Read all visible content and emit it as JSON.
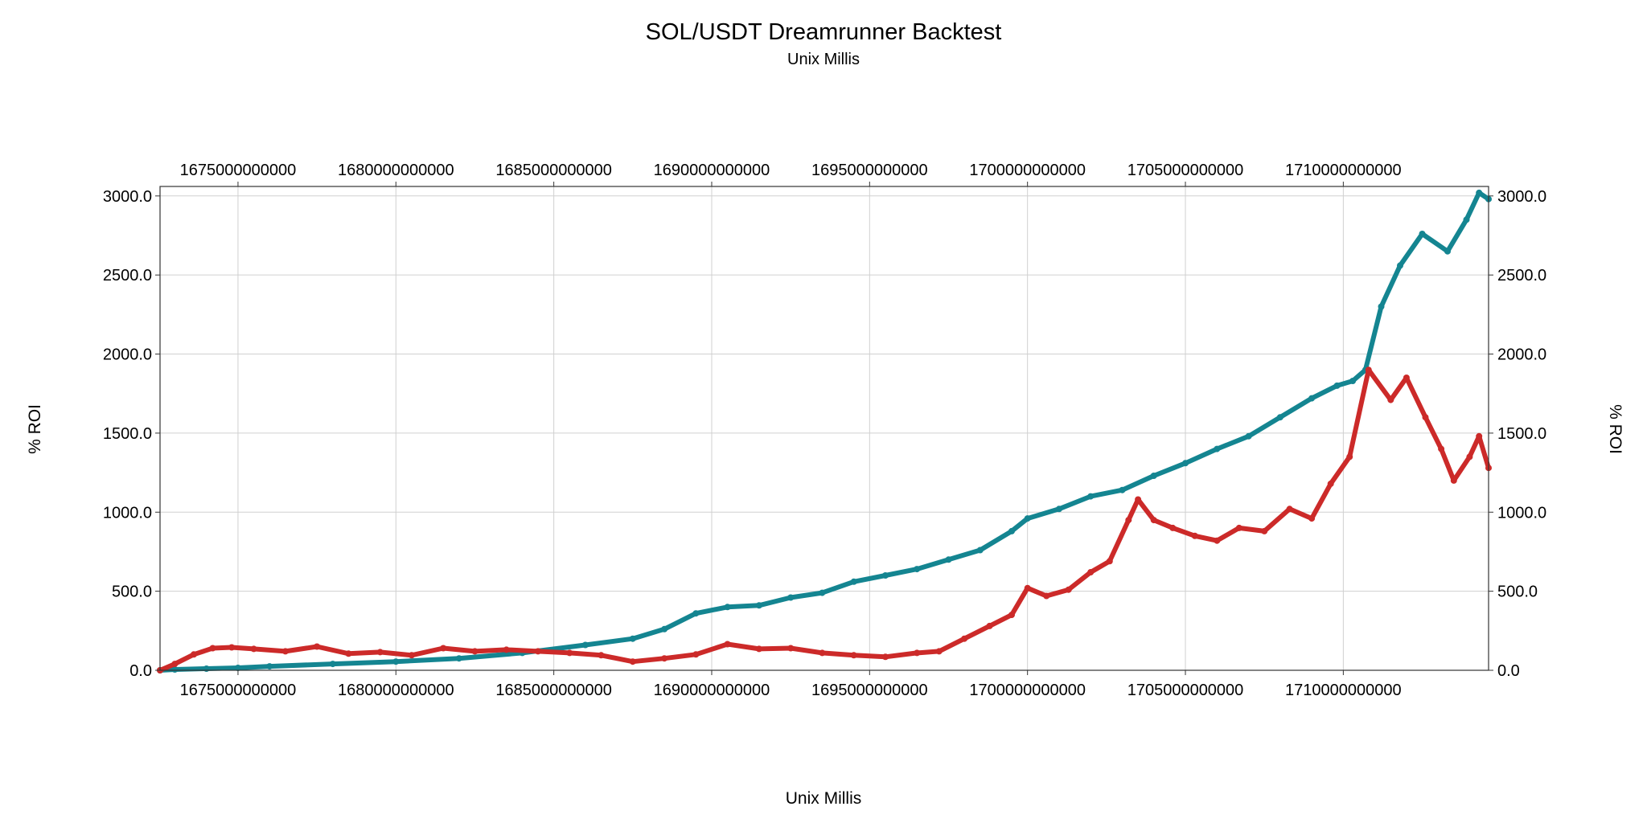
{
  "chart_data": {
    "type": "scatter",
    "title": "SOL/USDT Dreamrunner Backtest",
    "subtitle": "Unix Millis",
    "xlabel": "Unix Millis",
    "ylabel": "% ROI",
    "xlim": [
      1672531200000,
      1714600000000
    ],
    "ylim": [
      0,
      3060
    ],
    "x_ticks": [
      "1675000000000",
      "1680000000000",
      "1685000000000",
      "1690000000000",
      "1695000000000",
      "1700000000000",
      "1705000000000",
      "1710000000000"
    ],
    "x_tick_values": [
      1675000000000,
      1680000000000,
      1685000000000,
      1690000000000,
      1695000000000,
      1700000000000,
      1705000000000,
      1710000000000
    ],
    "y_ticks": [
      "0.0",
      "500.0",
      "1000.0",
      "1500.0",
      "2000.0",
      "2500.0",
      "3000.0"
    ],
    "y_tick_values": [
      0,
      500,
      1000,
      1500,
      2000,
      2500,
      3000
    ],
    "grid": true,
    "legend": "none",
    "series": [
      {
        "color": "#148591",
        "x": [
          1672531200000,
          1673000000000,
          1674000000000,
          1675000000000,
          1676000000000,
          1678000000000,
          1680000000000,
          1682000000000,
          1684000000000,
          1686000000000,
          1687500000000,
          1688500000000,
          1689500000000,
          1690500000000,
          1691500000000,
          1692500000000,
          1693500000000,
          1694500000000,
          1695500000000,
          1696500000000,
          1697500000000,
          1698500000000,
          1699500000000,
          1700000000000,
          1701000000000,
          1702000000000,
          1703000000000,
          1704000000000,
          1705000000000,
          1706000000000,
          1707000000000,
          1708000000000,
          1709000000000,
          1709800000000,
          1710300000000,
          1710700000000,
          1711200000000,
          1711800000000,
          1712500000000,
          1713300000000,
          1713900000000,
          1714300000000,
          1714600000000
        ],
        "values": [
          0,
          5,
          10,
          15,
          25,
          40,
          55,
          75,
          110,
          160,
          200,
          260,
          360,
          400,
          410,
          460,
          490,
          560,
          600,
          640,
          700,
          760,
          880,
          960,
          1020,
          1100,
          1140,
          1230,
          1310,
          1400,
          1480,
          1600,
          1720,
          1800,
          1830,
          1900,
          2300,
          2560,
          2760,
          2650,
          2850,
          3020,
          2980
        ]
      },
      {
        "color": "#cc2a29",
        "x": [
          1672531200000,
          1673000000000,
          1673600000000,
          1674200000000,
          1674800000000,
          1675500000000,
          1676500000000,
          1677500000000,
          1678500000000,
          1679500000000,
          1680500000000,
          1681500000000,
          1682500000000,
          1683500000000,
          1684500000000,
          1685500000000,
          1686500000000,
          1687500000000,
          1688500000000,
          1689500000000,
          1690500000000,
          1691500000000,
          1692500000000,
          1693500000000,
          1694500000000,
          1695500000000,
          1696500000000,
          1697200000000,
          1698000000000,
          1698800000000,
          1699500000000,
          1700000000000,
          1700600000000,
          1701300000000,
          1702000000000,
          1702600000000,
          1703200000000,
          1703500000000,
          1704000000000,
          1704600000000,
          1705300000000,
          1706000000000,
          1706700000000,
          1707500000000,
          1708300000000,
          1709000000000,
          1709600000000,
          1710200000000,
          1710800000000,
          1711500000000,
          1712000000000,
          1712600000000,
          1713100000000,
          1713500000000,
          1714000000000,
          1714300000000,
          1714600000000
        ],
        "values": [
          0,
          40,
          100,
          140,
          145,
          135,
          120,
          150,
          105,
          115,
          95,
          140,
          120,
          130,
          120,
          110,
          95,
          55,
          75,
          100,
          165,
          135,
          140,
          110,
          95,
          85,
          110,
          120,
          200,
          280,
          350,
          520,
          470,
          510,
          620,
          690,
          950,
          1080,
          950,
          900,
          850,
          820,
          900,
          880,
          1020,
          960,
          1180,
          1350,
          1900,
          1710,
          1850,
          1600,
          1400,
          1200,
          1350,
          1480,
          1280
        ]
      }
    ]
  }
}
